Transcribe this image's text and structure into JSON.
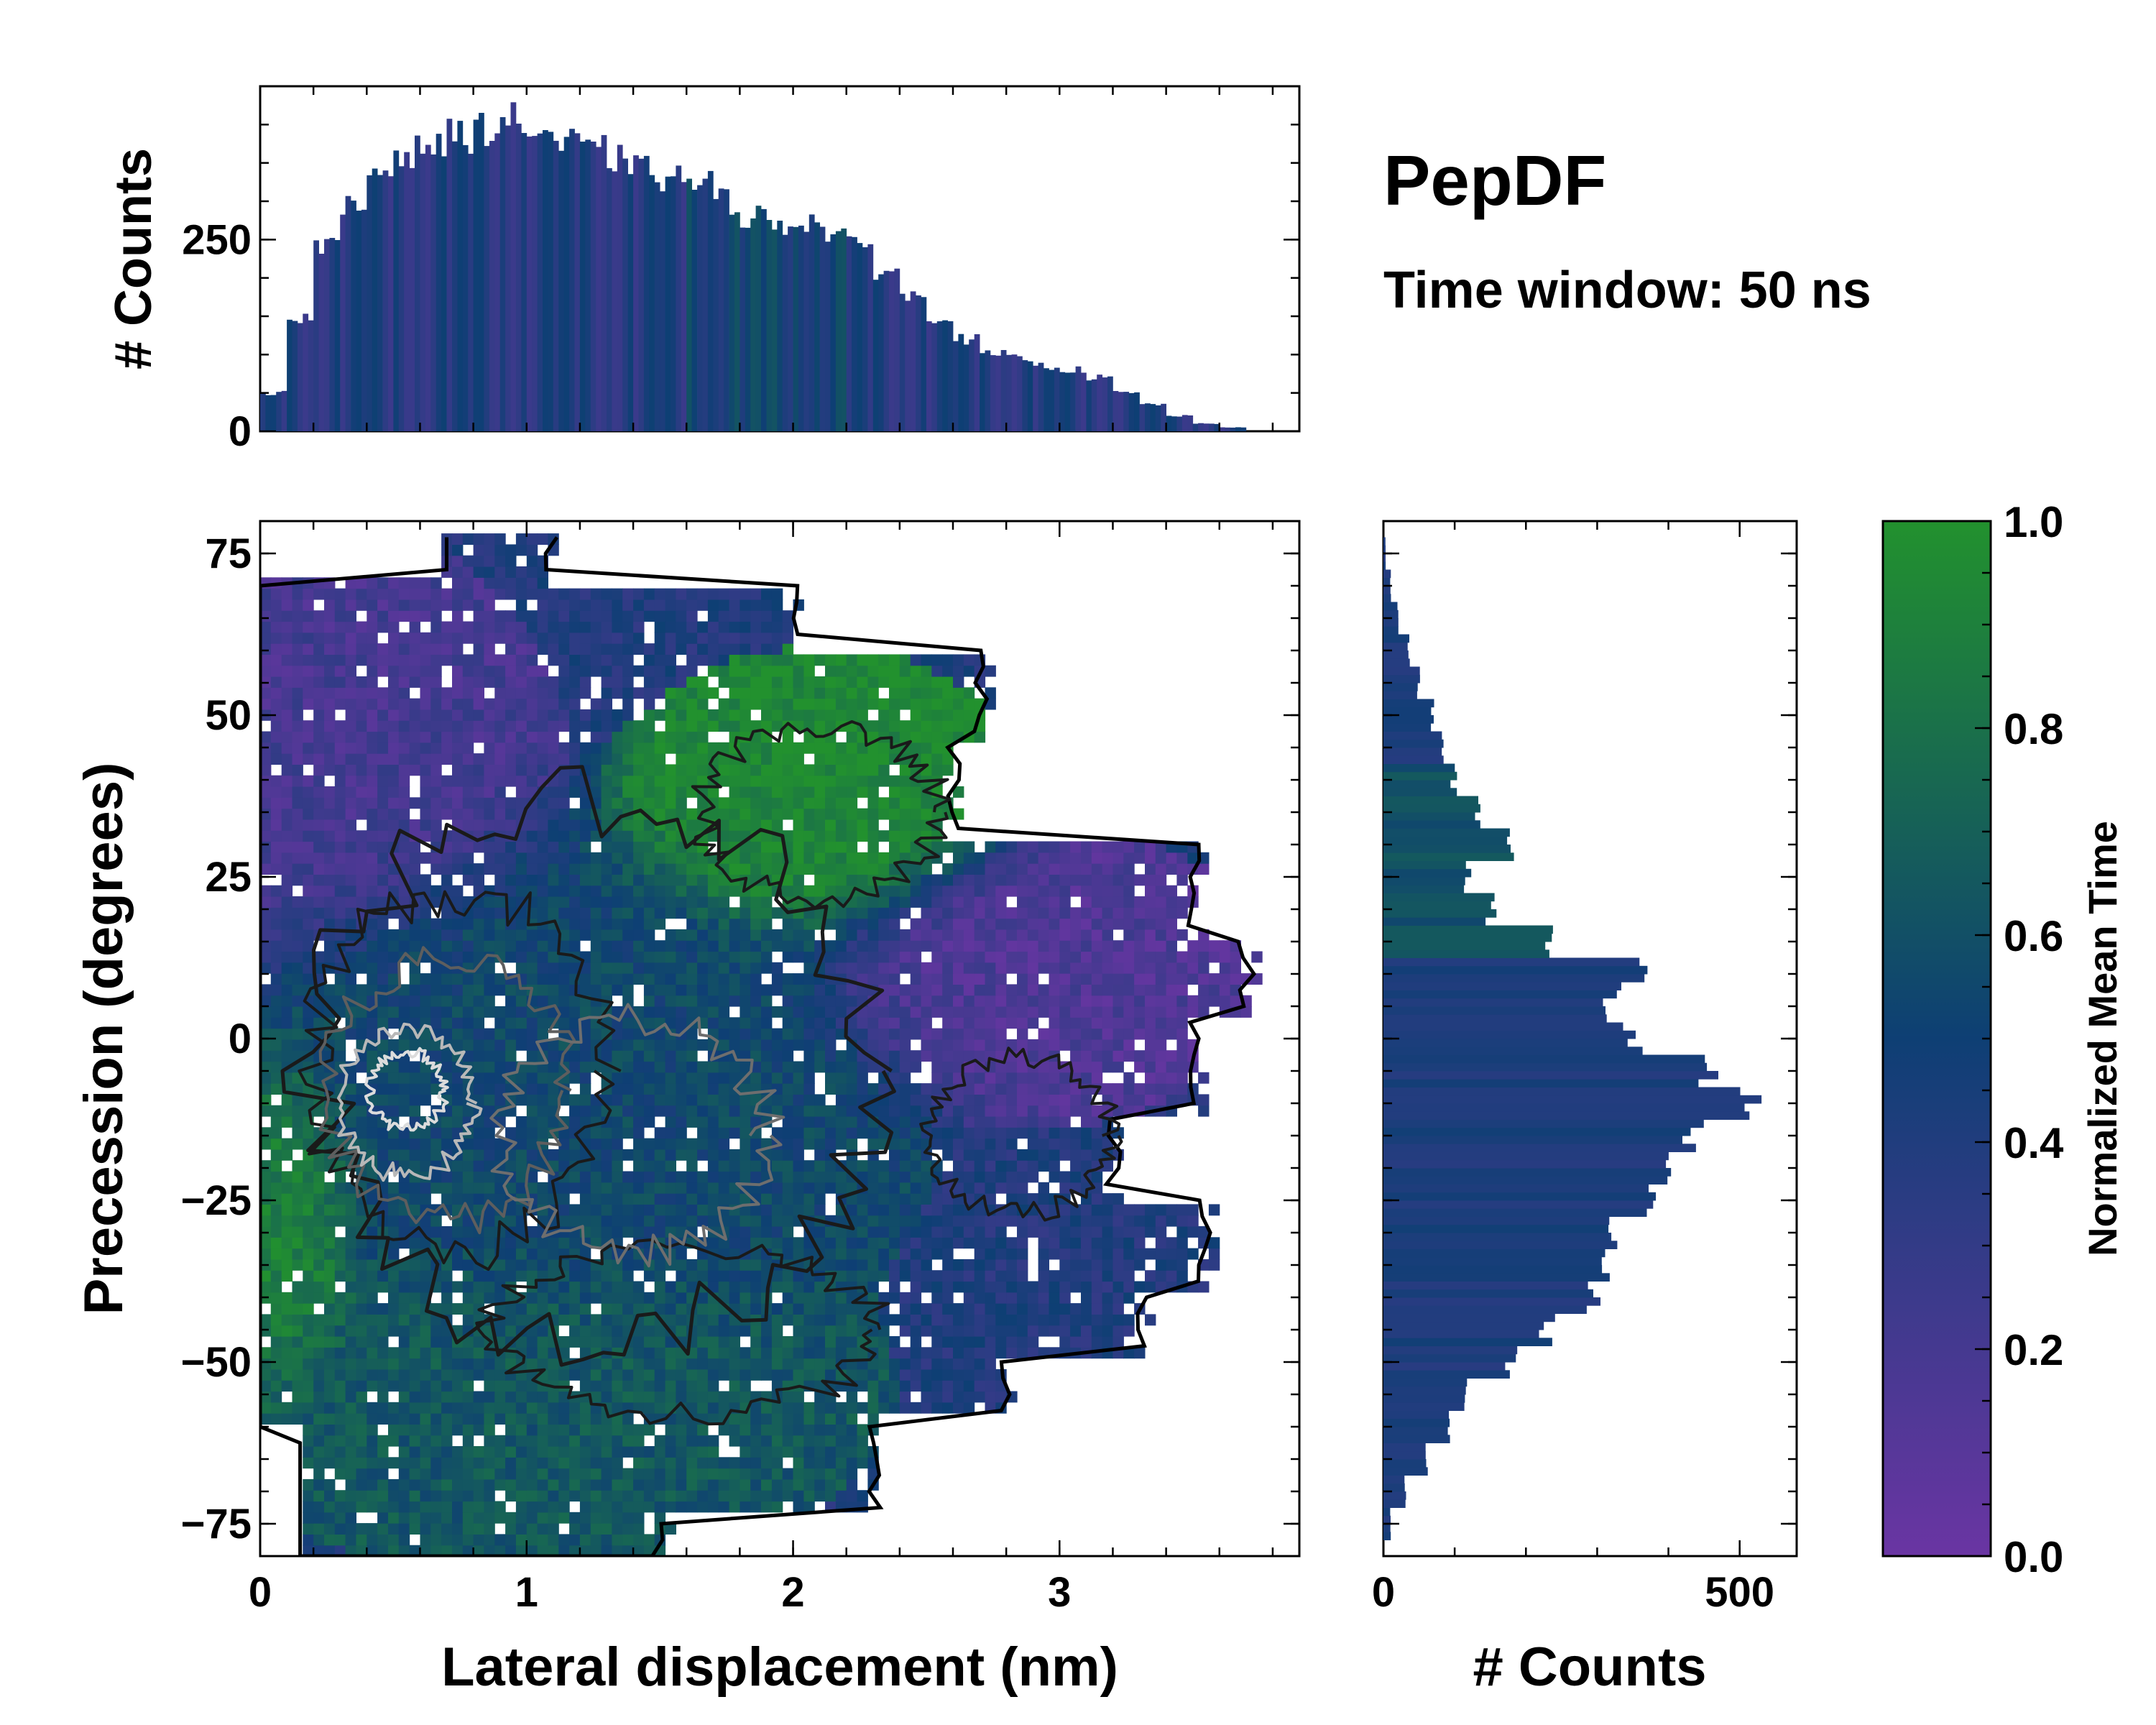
{
  "figure": {
    "title": "PepDF",
    "subtitle": "Time window: 50 ns"
  },
  "colors": {
    "low": "#6a35a3",
    "mid": "#0e3f74",
    "high": "#22912e",
    "contour_dark": "#1a1a1a",
    "contour_light": "#b8b8b8",
    "outline": "#000000"
  },
  "chart_data": [
    {
      "id": "joint-2d-histogram",
      "type": "heatmap",
      "xlabel": "Lateral displacement (nm)",
      "ylabel": "Precession (degrees)",
      "xlim": [
        0,
        3.9
      ],
      "ylim": [
        -80,
        80
      ],
      "xticks": [
        0,
        1,
        2,
        3
      ],
      "yticks": [
        75,
        50,
        25,
        0,
        -25,
        -50,
        -75
      ],
      "color_encoding": "Normalized Mean Time",
      "overlay": "density contours",
      "regions": [
        {
          "name": "high-time cluster",
          "x_center": 2.1,
          "y_center": 37,
          "value": 0.95
        },
        {
          "name": "early-time cluster",
          "x_center": 2.9,
          "y_center": 10,
          "value": 0.15
        },
        {
          "name": "central mixed region",
          "x_center": 1.2,
          "y_center": -10,
          "value": 0.55
        },
        {
          "name": "lower cluster",
          "x_center": 1.0,
          "y_center": -55,
          "value": 0.65
        },
        {
          "name": "left edge cluster",
          "x_center": 0.1,
          "y_center": -30,
          "value": 0.9
        }
      ]
    },
    {
      "id": "top-marginal-histogram",
      "type": "bar",
      "ylabel": "# Counts",
      "ylim": [
        0,
        450
      ],
      "yticks": [
        0,
        250
      ],
      "x_range": [
        0,
        3.9
      ],
      "bin_centers": [
        0.05,
        0.15,
        0.25,
        0.35,
        0.45,
        0.55,
        0.65,
        0.75,
        0.85,
        0.95,
        1.05,
        1.15,
        1.25,
        1.35,
        1.45,
        1.55,
        1.65,
        1.75,
        1.85,
        1.95,
        2.05,
        2.15,
        2.25,
        2.35,
        2.45,
        2.55,
        2.65,
        2.75,
        2.85,
        2.95,
        3.05,
        3.15,
        3.25,
        3.35,
        3.45,
        3.55,
        3.65,
        3.75
      ],
      "values": [
        50,
        150,
        240,
        290,
        340,
        365,
        375,
        385,
        395,
        405,
        390,
        375,
        365,
        355,
        340,
        330,
        325,
        300,
        280,
        270,
        275,
        260,
        240,
        210,
        175,
        150,
        120,
        100,
        95,
        85,
        80,
        70,
        50,
        35,
        20,
        10,
        5,
        0
      ]
    },
    {
      "id": "right-marginal-histogram",
      "type": "bar",
      "orientation": "horizontal",
      "xlabel": "# Counts",
      "xlim": [
        0,
        580
      ],
      "xticks": [
        0,
        500
      ],
      "y_range": [
        -80,
        80
      ],
      "bin_centers": [
        -75,
        -70,
        -65,
        -60,
        -55,
        -50,
        -45,
        -40,
        -35,
        -30,
        -25,
        -20,
        -15,
        -10,
        -5,
        0,
        5,
        10,
        15,
        20,
        25,
        30,
        35,
        40,
        45,
        50,
        55,
        60,
        65,
        70,
        75
      ],
      "values": [
        10,
        30,
        60,
        90,
        120,
        180,
        230,
        290,
        300,
        330,
        380,
        410,
        440,
        520,
        460,
        350,
        320,
        350,
        240,
        150,
        120,
        180,
        130,
        100,
        80,
        70,
        50,
        35,
        20,
        10,
        3
      ]
    },
    {
      "id": "colorbar",
      "type": "colorbar",
      "label": "Normalized Mean Time",
      "range": [
        0.0,
        1.0
      ],
      "ticks": [
        "1.0",
        "0.8",
        "0.6",
        "0.4",
        "0.2",
        "0.0"
      ]
    }
  ]
}
